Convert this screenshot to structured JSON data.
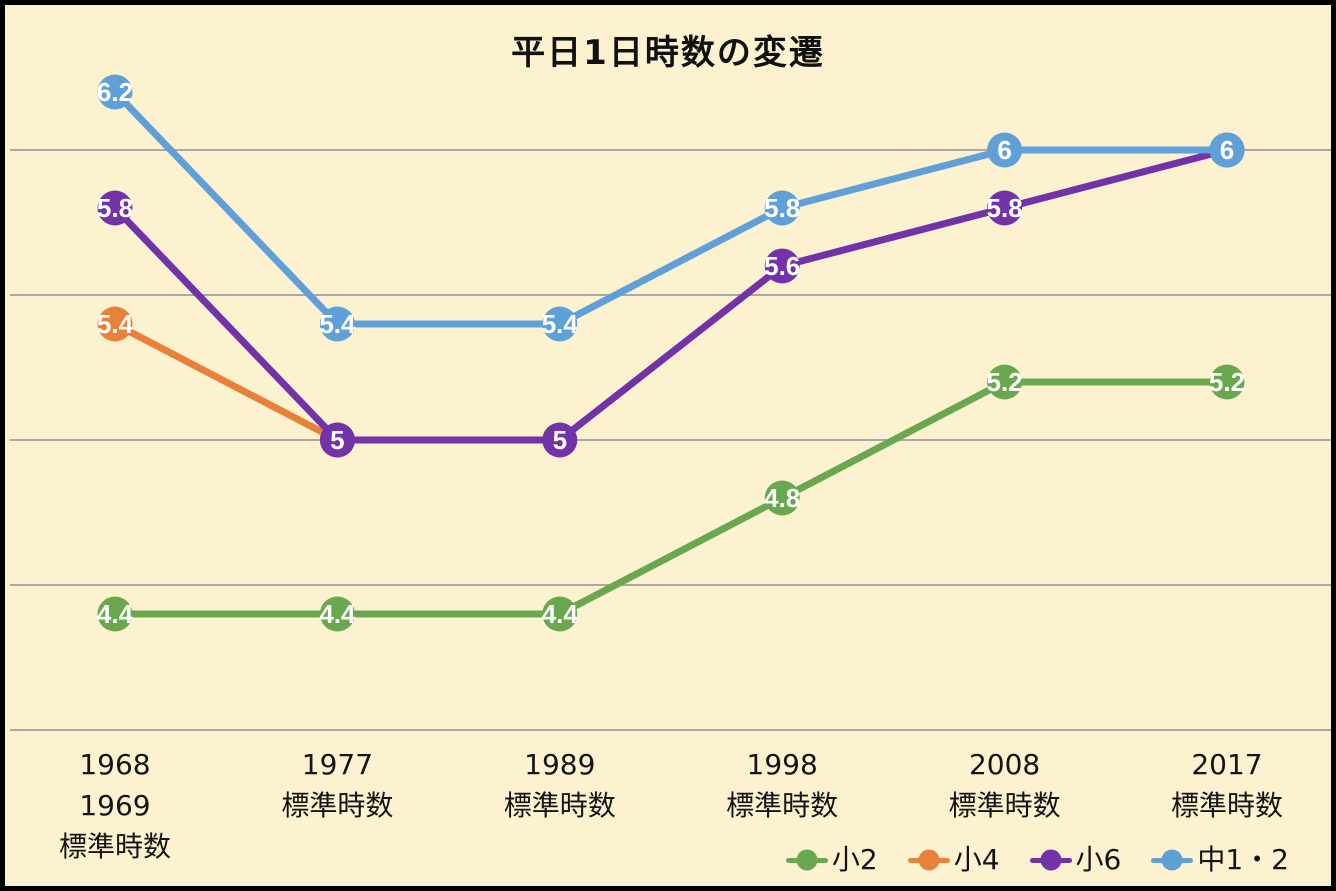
{
  "page": {
    "background_color": "#fdf2d0",
    "frame_color": "#000000",
    "text_color": "#141414"
  },
  "chart_data": {
    "type": "line",
    "title": "平日1日時数の変遷",
    "categories": [
      [
        "1968",
        "1969",
        "標準時数"
      ],
      [
        "1977",
        "標準時数"
      ],
      [
        "1989",
        "標準時数"
      ],
      [
        "1998",
        "標準時数"
      ],
      [
        "2008",
        "標準時数"
      ],
      [
        "2017",
        "標準時数"
      ]
    ],
    "series": [
      {
        "name": "小2",
        "color": "#6aa84f",
        "values": [
          4.4,
          4.4,
          4.4,
          4.8,
          5.2,
          5.2
        ],
        "point_labels": [
          "4.4",
          "4.4",
          "4.4",
          "4.8",
          "5.2",
          "5.2"
        ]
      },
      {
        "name": "小4",
        "color": "#e8823b",
        "values": [
          5.4,
          5,
          null,
          null,
          null,
          null
        ],
        "point_labels": [
          "5.4",
          "5",
          null,
          null,
          null,
          null
        ]
      },
      {
        "name": "小6",
        "color": "#7232a8",
        "values": [
          5.8,
          5,
          5,
          5.6,
          5.8,
          6
        ],
        "point_labels": [
          "5.8",
          "5",
          "5",
          "5.6",
          "5.8",
          "6"
        ]
      },
      {
        "name": "中1・2",
        "color": "#60a0d9",
        "values": [
          6.2,
          5.4,
          5.4,
          5.8,
          6,
          6
        ],
        "point_labels": [
          "6.2",
          "5.4",
          "5.4",
          "5.8",
          "6",
          "6"
        ]
      }
    ],
    "ylim": [
      4.0,
      6.5
    ],
    "gridlines": [
      4.0,
      4.5,
      5.0,
      5.5,
      6.0
    ],
    "grid_color": "#a8a8a8",
    "grid_on": true,
    "legend_position": "bottom-right",
    "point_label_color": "#ffffff"
  }
}
